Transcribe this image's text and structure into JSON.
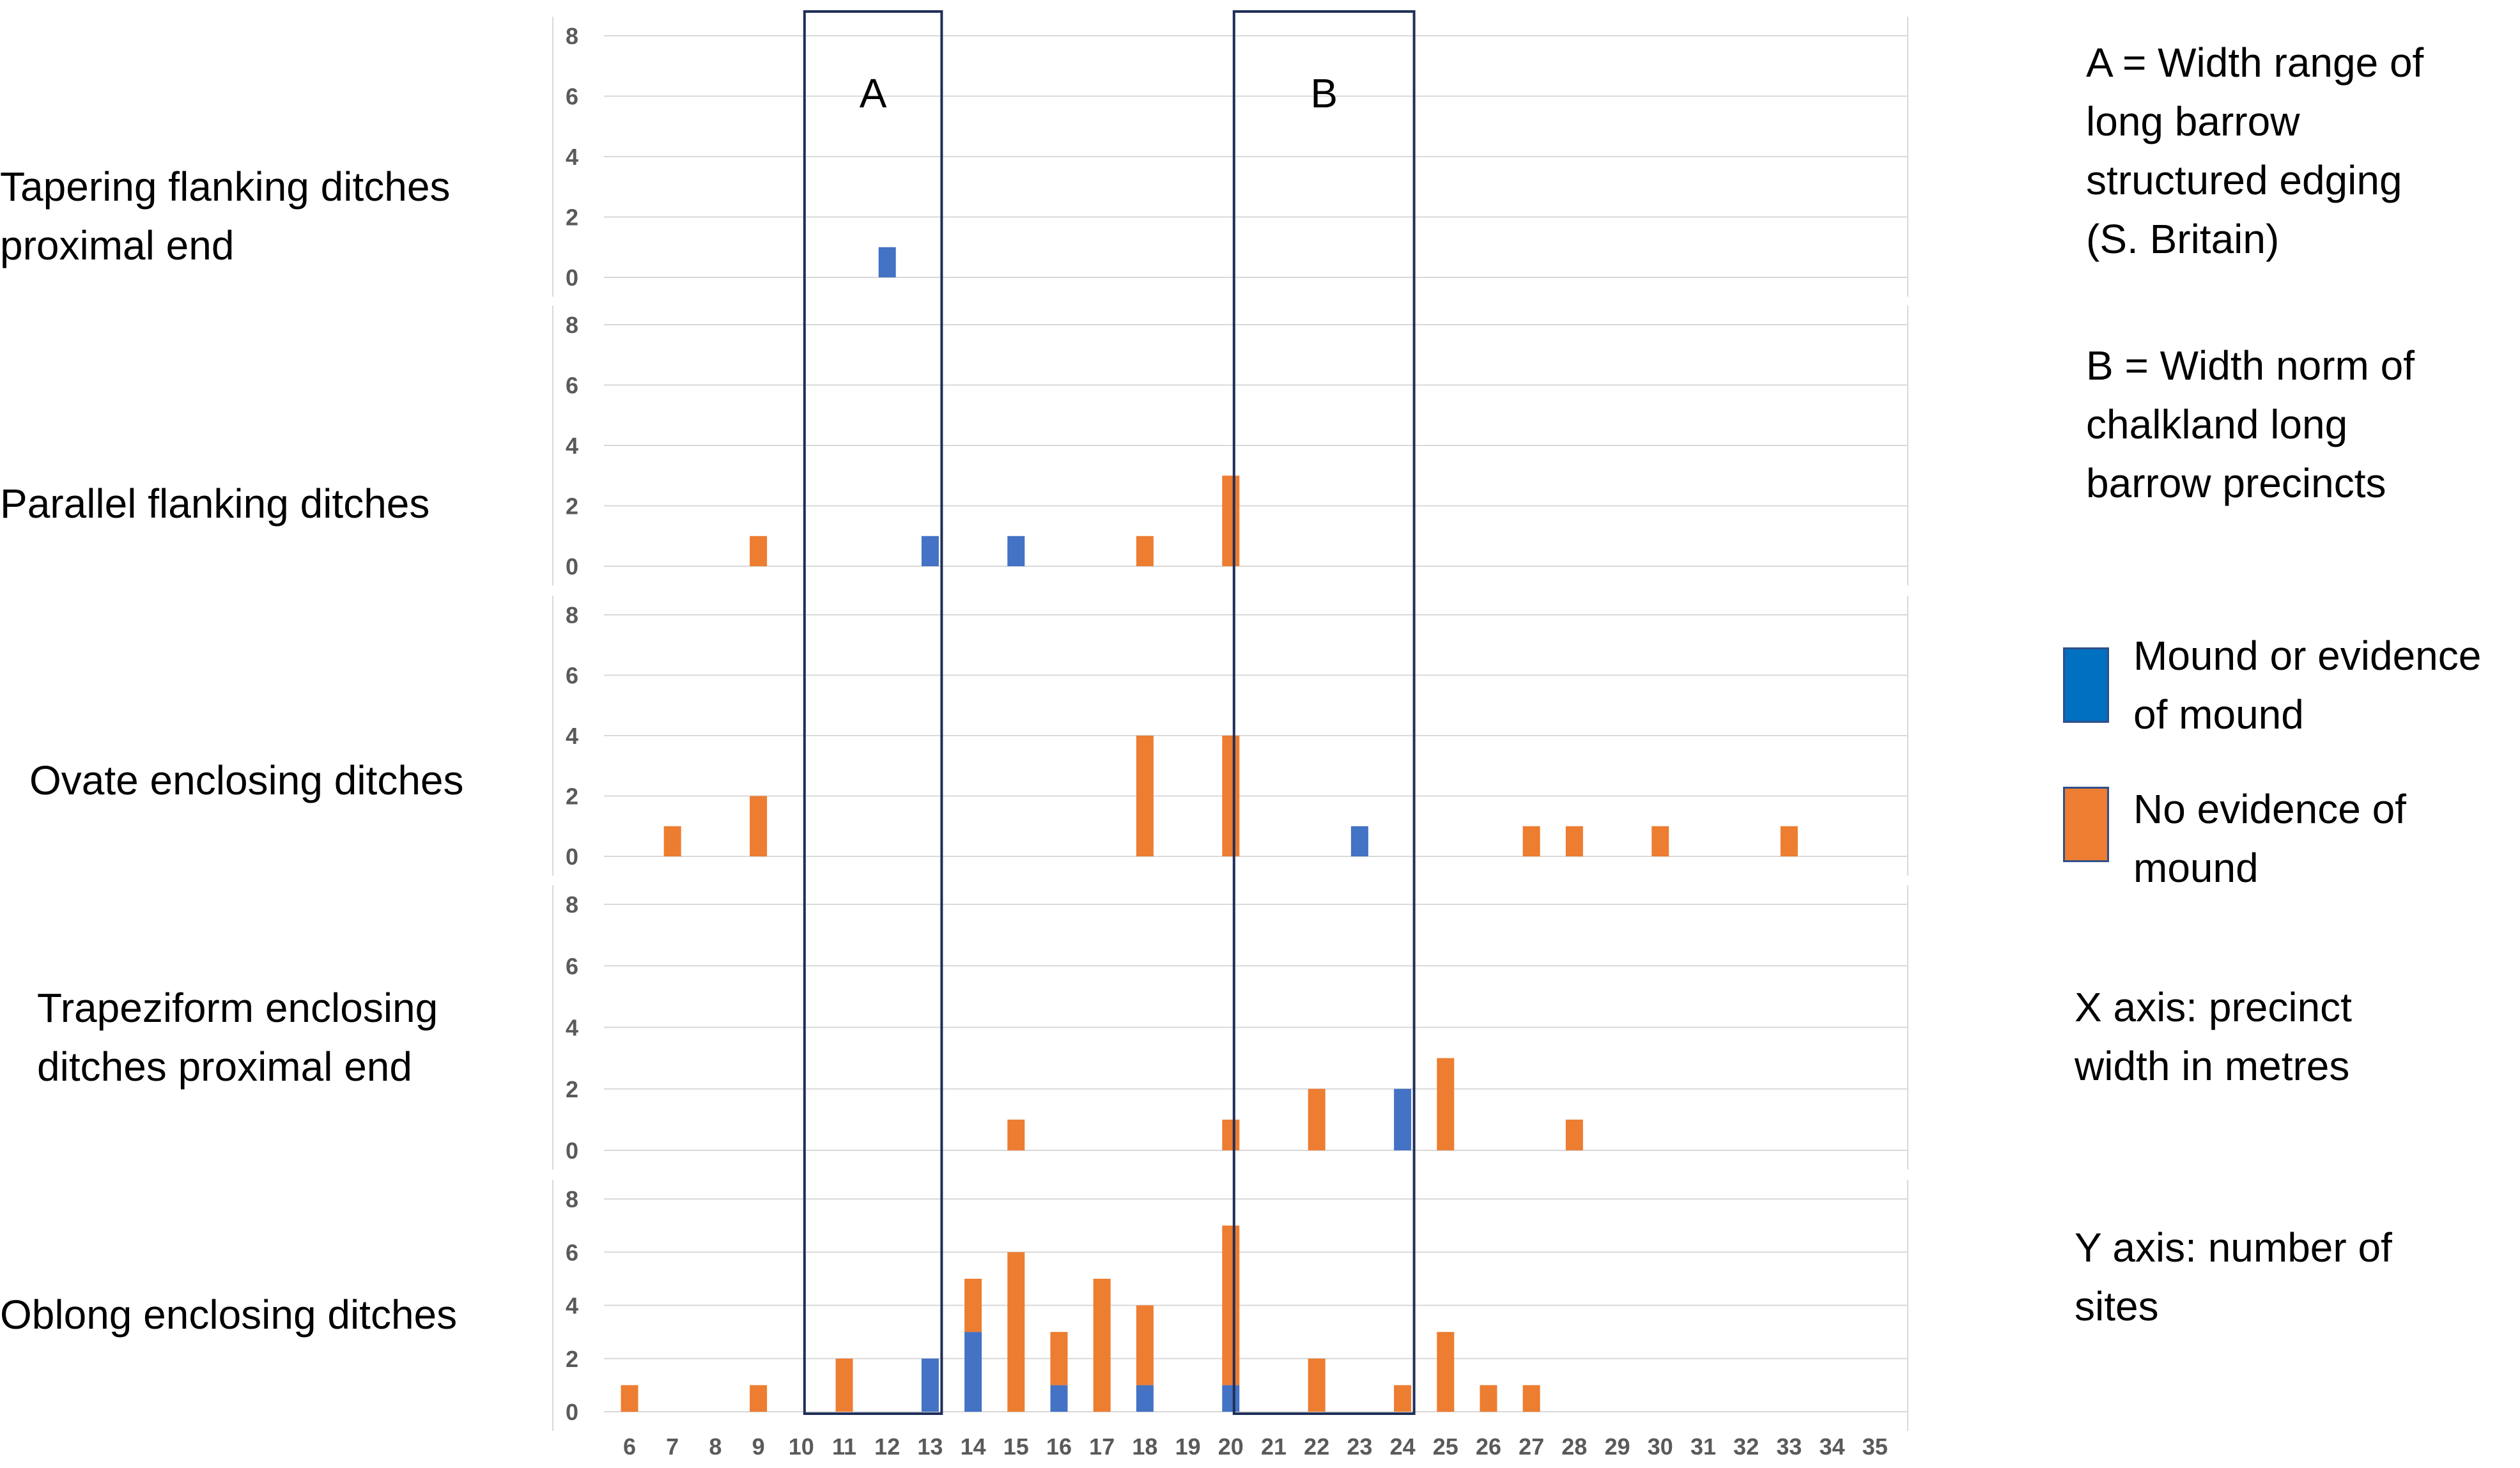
{
  "chart_data": {
    "type": "bar",
    "stacked": true,
    "categories": [
      "6",
      "7",
      "8",
      "9",
      "10",
      "11",
      "12",
      "13",
      "14",
      "15",
      "16",
      "17",
      "18",
      "19",
      "20",
      "21",
      "22",
      "23",
      "24",
      "25",
      "26",
      "27",
      "28",
      "29",
      "30",
      "31",
      "32",
      "33",
      "34",
      "35"
    ],
    "ylim": [
      0,
      8
    ],
    "yticks": [
      "0",
      "2",
      "4",
      "6",
      "8"
    ],
    "legend": [
      {
        "name": "Mound or evidence of mound",
        "color": "#4472C4"
      },
      {
        "name": "No evidence of mound",
        "color": "#ED7D31"
      }
    ],
    "panels": [
      {
        "title": "Tapering flanking ditches proximal end",
        "series": [
          {
            "name": "Mound or evidence of mound",
            "values": {
              "12": 1
            }
          },
          {
            "name": "No evidence of mound",
            "values": {}
          }
        ]
      },
      {
        "title": "Parallel flanking ditches",
        "series": [
          {
            "name": "Mound or evidence of mound",
            "values": {
              "13": 1,
              "15": 1
            }
          },
          {
            "name": "No evidence of mound",
            "values": {
              "9": 1,
              "18": 1,
              "20": 3
            }
          }
        ]
      },
      {
        "title": "Ovate enclosing ditches",
        "series": [
          {
            "name": "Mound or evidence of mound",
            "values": {
              "23": 1
            }
          },
          {
            "name": "No evidence of mound",
            "values": {
              "7": 1,
              "9": 2,
              "18": 4,
              "20": 4,
              "27": 1,
              "28": 1,
              "30": 1,
              "33": 1
            }
          }
        ]
      },
      {
        "title": "Trapeziform enclosing ditches proximal end",
        "series": [
          {
            "name": "Mound or evidence of mound",
            "values": {
              "24": 2
            }
          },
          {
            "name": "No evidence of mound",
            "values": {
              "15": 1,
              "20": 1,
              "22": 2,
              "25": 3,
              "28": 1
            }
          }
        ]
      },
      {
        "title": "Oblong enclosing ditches",
        "series": [
          {
            "name": "Mound or evidence of mound",
            "values": {
              "13": 2,
              "14": 3,
              "16": 1,
              "18": 1,
              "20": 1
            }
          },
          {
            "name": "No evidence of mound",
            "values": {
              "6": 1,
              "9": 1,
              "11": 2,
              "14": 2,
              "15": 6,
              "16": 2,
              "17": 5,
              "18": 3,
              "20": 6,
              "22": 2,
              "24": 1,
              "25": 3,
              "26": 1,
              "27": 1
            }
          }
        ]
      }
    ],
    "highlight_boxes": [
      {
        "label": "A",
        "from": "10",
        "to": "13"
      },
      {
        "label": "B",
        "from": "20",
        "to": "24"
      }
    ]
  },
  "row_labels": [
    [
      "Tapering flanking ditches",
      "proximal end"
    ],
    [
      "Parallel flanking ditches"
    ],
    [
      "Ovate enclosing ditches"
    ],
    [
      "Trapeziform enclosing",
      "ditches proximal end"
    ],
    [
      "Oblong enclosing ditches"
    ]
  ],
  "notes": {
    "a_box": [
      "A = Width range of",
      "long barrow",
      "structured edging",
      "(S. Britain)"
    ],
    "b_box": [
      "B = Width norm of",
      "chalkland long",
      "barrow precincts"
    ],
    "legend_mound": [
      "Mound or evidence",
      "of mound"
    ],
    "legend_no_mound": [
      "No evidence of",
      "mound"
    ],
    "x_axis": [
      "X axis: precinct",
      "width in metres"
    ],
    "y_axis": [
      "Y axis: number of",
      "sites"
    ]
  },
  "colors": {
    "mound": "#4472C4",
    "no_mound": "#ED7D31",
    "box_outline": "#1F2F5A",
    "gridline": "#D9D9D9",
    "tick_text": "#5A5A5A"
  }
}
